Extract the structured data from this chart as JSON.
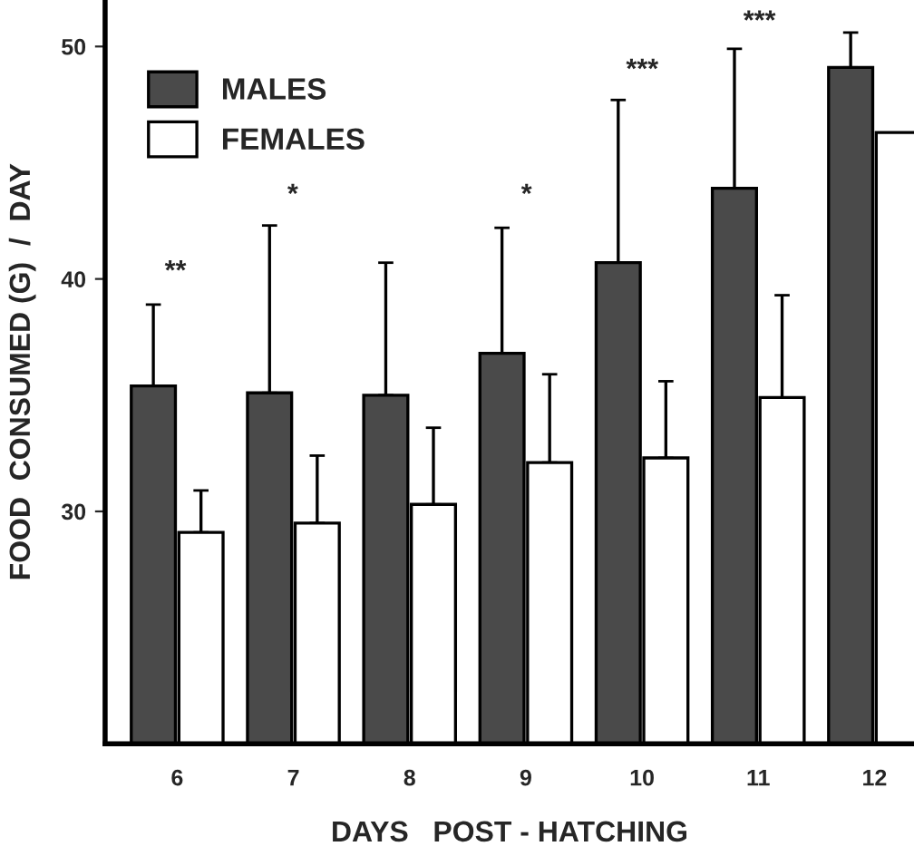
{
  "chart_data": {
    "type": "bar",
    "xlabel": "DAYS   POST - HATCHING",
    "ylabel": "FOOD  CONSUMED (G)  /  DAY",
    "categories": [
      "6",
      "7",
      "8",
      "9",
      "10",
      "11",
      "12"
    ],
    "series": [
      {
        "name": "MALES",
        "color": "#4a4a4a",
        "values": [
          35.4,
          35.1,
          35.0,
          36.8,
          40.7,
          43.9,
          49.1
        ],
        "errors": [
          [
            35.4,
            38.9
          ],
          [
            35.1,
            42.3
          ],
          [
            35.0,
            40.7
          ],
          [
            36.8,
            42.2
          ],
          [
            40.7,
            47.7
          ],
          [
            43.9,
            49.9
          ],
          [
            49.1,
            50.6
          ]
        ]
      },
      {
        "name": "FEMALES",
        "color": "#ffffff",
        "values": [
          29.1,
          29.5,
          30.3,
          32.1,
          32.3,
          34.9,
          46.3
        ],
        "errors": [
          [
            29.1,
            30.9
          ],
          [
            29.5,
            32.4
          ],
          [
            30.3,
            33.6
          ],
          [
            32.1,
            35.9
          ],
          [
            32.3,
            35.6
          ],
          [
            34.9,
            39.3
          ],
          null
        ]
      }
    ],
    "annotations": [
      "**",
      "*",
      "*",
      "***",
      "***"
    ],
    "ylim": [
      20,
      52
    ],
    "yticks": [
      30,
      40,
      50
    ],
    "grid": false,
    "legend": "top left"
  }
}
